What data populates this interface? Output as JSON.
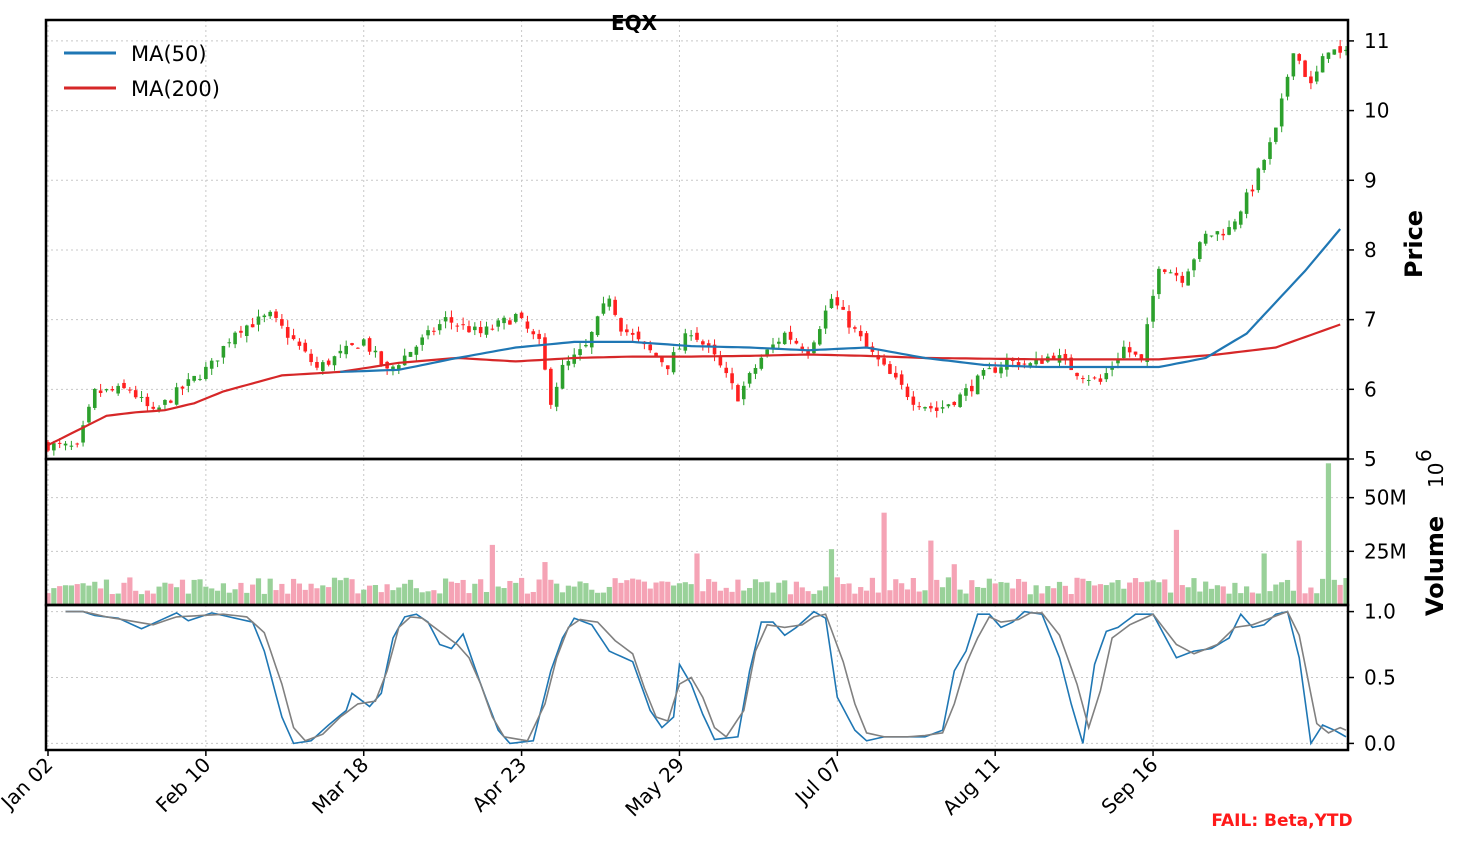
{
  "chart_data": [
    {
      "type": "candlestick",
      "title": "EQX",
      "ylabel": "Price",
      "ylim": [
        5,
        11.3
      ],
      "yticks": [
        "5",
        "6",
        "7",
        "8",
        "9",
        "10",
        "11"
      ],
      "x_tick_labels": [
        "Jan 02",
        "Feb 10",
        "Mar 18",
        "Apr 23",
        "May 29",
        "Jul 07",
        "Aug 11",
        "Sep 16"
      ],
      "legend": {
        "placement": "top-left",
        "entries": [
          {
            "label": "MA(50)",
            "color": "#1f77b4"
          },
          {
            "label": "MA(200)",
            "color": "#d62728"
          }
        ]
      },
      "up_color": "#2ca02c",
      "down_color": "#ff2020",
      "close_keypoints": [
        [
          0,
          5.2
        ],
        [
          5,
          5.15
        ],
        [
          8,
          5.95
        ],
        [
          14,
          6.0
        ],
        [
          18,
          5.65
        ],
        [
          22,
          5.95
        ],
        [
          28,
          6.35
        ],
        [
          32,
          6.85
        ],
        [
          38,
          7.05
        ],
        [
          42,
          6.7
        ],
        [
          46,
          6.3
        ],
        [
          54,
          6.7
        ],
        [
          58,
          6.25
        ],
        [
          62,
          6.55
        ],
        [
          68,
          7.0
        ],
        [
          74,
          6.8
        ],
        [
          80,
          7.05
        ],
        [
          84,
          6.65
        ],
        [
          86,
          5.85
        ],
        [
          88,
          6.3
        ],
        [
          92,
          6.6
        ],
        [
          96,
          7.35
        ],
        [
          98,
          6.9
        ],
        [
          102,
          6.6
        ],
        [
          106,
          6.35
        ],
        [
          110,
          6.85
        ],
        [
          114,
          6.45
        ],
        [
          118,
          5.9
        ],
        [
          122,
          6.45
        ],
        [
          126,
          6.8
        ],
        [
          130,
          6.55
        ],
        [
          134,
          7.3
        ],
        [
          137,
          6.95
        ],
        [
          140,
          6.6
        ],
        [
          144,
          6.2
        ],
        [
          148,
          5.85
        ],
        [
          152,
          5.7
        ],
        [
          156,
          5.9
        ],
        [
          160,
          6.2
        ],
        [
          164,
          6.4
        ],
        [
          168,
          6.35
        ],
        [
          172,
          6.5
        ],
        [
          176,
          6.25
        ],
        [
          180,
          6.1
        ],
        [
          184,
          6.6
        ],
        [
          187,
          6.4
        ],
        [
          190,
          7.8
        ],
        [
          194,
          7.6
        ],
        [
          198,
          8.2
        ],
        [
          202,
          8.3
        ],
        [
          206,
          8.9
        ],
        [
          210,
          9.7
        ],
        [
          213,
          10.9
        ],
        [
          216,
          10.35
        ],
        [
          219,
          10.9
        ],
        [
          221,
          10.8
        ]
      ],
      "ma50_keypoints": [
        [
          50,
          6.25
        ],
        [
          60,
          6.28
        ],
        [
          70,
          6.45
        ],
        [
          80,
          6.6
        ],
        [
          90,
          6.68
        ],
        [
          100,
          6.68
        ],
        [
          110,
          6.62
        ],
        [
          120,
          6.6
        ],
        [
          130,
          6.56
        ],
        [
          140,
          6.6
        ],
        [
          150,
          6.45
        ],
        [
          160,
          6.35
        ],
        [
          170,
          6.32
        ],
        [
          180,
          6.32
        ],
        [
          190,
          6.32
        ],
        [
          198,
          6.45
        ],
        [
          205,
          6.8
        ],
        [
          210,
          7.25
        ],
        [
          215,
          7.7
        ],
        [
          221,
          8.3
        ]
      ],
      "ma200_keypoints": [
        [
          0,
          5.2
        ],
        [
          6,
          5.45
        ],
        [
          10,
          5.62
        ],
        [
          15,
          5.67
        ],
        [
          20,
          5.7
        ],
        [
          25,
          5.8
        ],
        [
          30,
          5.97
        ],
        [
          40,
          6.2
        ],
        [
          50,
          6.25
        ],
        [
          60,
          6.38
        ],
        [
          70,
          6.45
        ],
        [
          80,
          6.4
        ],
        [
          90,
          6.45
        ],
        [
          100,
          6.47
        ],
        [
          110,
          6.47
        ],
        [
          120,
          6.48
        ],
        [
          130,
          6.5
        ],
        [
          140,
          6.48
        ],
        [
          150,
          6.45
        ],
        [
          160,
          6.44
        ],
        [
          170,
          6.43
        ],
        [
          180,
          6.43
        ],
        [
          190,
          6.43
        ],
        [
          200,
          6.5
        ],
        [
          210,
          6.6
        ],
        [
          221,
          6.93
        ]
      ]
    },
    {
      "type": "bar",
      "ylabel": "Volume",
      "scale_label": "10^6",
      "ylim": [
        0,
        68
      ],
      "yticks": [
        "25M",
        "50M"
      ],
      "up_color": "#99d199",
      "down_color": "#f5a3b5",
      "note": "",
      "volume_spikes": [
        [
          76,
          28
        ],
        [
          85,
          20
        ],
        [
          111,
          24
        ],
        [
          134,
          26
        ],
        [
          143,
          43
        ],
        [
          145,
          12
        ],
        [
          151,
          30
        ],
        [
          155,
          19
        ],
        [
          193,
          35
        ],
        [
          208,
          24
        ],
        [
          214,
          30
        ],
        [
          219,
          66
        ]
      ]
    },
    {
      "type": "line",
      "ylim": [
        -0.05,
        1.05
      ],
      "yticks": [
        "0.0",
        "0.5",
        "1.0"
      ],
      "series": [
        {
          "color": "#1f77b4",
          "keypoints": [
            [
              3,
              1.0
            ],
            [
              6,
              1.0
            ],
            [
              8,
              0.97
            ],
            [
              12,
              0.95
            ],
            [
              16,
              0.87
            ],
            [
              20,
              0.95
            ],
            [
              22,
              0.99
            ],
            [
              24,
              0.93
            ],
            [
              28,
              0.99
            ],
            [
              32,
              0.95
            ],
            [
              35,
              0.92
            ],
            [
              37,
              0.7
            ],
            [
              40,
              0.2
            ],
            [
              42,
              0.0
            ],
            [
              45,
              0.02
            ],
            [
              48,
              0.14
            ],
            [
              51,
              0.25
            ],
            [
              52,
              0.38
            ],
            [
              55,
              0.28
            ],
            [
              57,
              0.38
            ],
            [
              59,
              0.8
            ],
            [
              61,
              0.96
            ],
            [
              63,
              0.98
            ],
            [
              65,
              0.92
            ],
            [
              67,
              0.75
            ],
            [
              69,
              0.72
            ],
            [
              71,
              0.83
            ],
            [
              74,
              0.45
            ],
            [
              77,
              0.1
            ],
            [
              79,
              0.0
            ],
            [
              83,
              0.02
            ],
            [
              86,
              0.55
            ],
            [
              88,
              0.8
            ],
            [
              90,
              0.95
            ],
            [
              93,
              0.9
            ],
            [
              96,
              0.7
            ],
            [
              100,
              0.62
            ],
            [
              103,
              0.25
            ],
            [
              105,
              0.12
            ],
            [
              107,
              0.2
            ],
            [
              108,
              0.6
            ],
            [
              110,
              0.45
            ],
            [
              112,
              0.22
            ],
            [
              114,
              0.03
            ],
            [
              118,
              0.05
            ],
            [
              120,
              0.55
            ],
            [
              122,
              0.92
            ],
            [
              124,
              0.92
            ],
            [
              126,
              0.82
            ],
            [
              128,
              0.88
            ],
            [
              131,
              1.0
            ],
            [
              133,
              0.95
            ],
            [
              135,
              0.35
            ],
            [
              138,
              0.1
            ],
            [
              140,
              0.02
            ],
            [
              143,
              0.05
            ],
            [
              147,
              0.05
            ],
            [
              150,
              0.05
            ],
            [
              153,
              0.1
            ],
            [
              155,
              0.55
            ],
            [
              157,
              0.7
            ],
            [
              159,
              0.98
            ],
            [
              161,
              0.98
            ],
            [
              163,
              0.88
            ],
            [
              165,
              0.92
            ],
            [
              167,
              1.0
            ],
            [
              170,
              0.98
            ],
            [
              173,
              0.65
            ],
            [
              175,
              0.3
            ],
            [
              177,
              0.0
            ],
            [
              179,
              0.6
            ],
            [
              181,
              0.85
            ],
            [
              183,
              0.88
            ],
            [
              186,
              0.98
            ],
            [
              189,
              0.98
            ],
            [
              193,
              0.65
            ],
            [
              196,
              0.7
            ],
            [
              199,
              0.72
            ],
            [
              202,
              0.8
            ],
            [
              204,
              0.98
            ],
            [
              206,
              0.88
            ],
            [
              208,
              0.9
            ],
            [
              210,
              0.98
            ],
            [
              212,
              1.0
            ],
            [
              214,
              0.65
            ],
            [
              216,
              0.0
            ],
            [
              218,
              0.14
            ],
            [
              220,
              0.1
            ],
            [
              222,
              0.05
            ]
          ]
        },
        {
          "color": "#808080",
          "keypoints": [
            [
              3,
              1.0
            ],
            [
              6,
              1.0
            ],
            [
              10,
              0.96
            ],
            [
              14,
              0.93
            ],
            [
              18,
              0.9
            ],
            [
              22,
              0.96
            ],
            [
              26,
              0.97
            ],
            [
              30,
              0.98
            ],
            [
              34,
              0.96
            ],
            [
              37,
              0.84
            ],
            [
              40,
              0.45
            ],
            [
              42,
              0.12
            ],
            [
              44,
              0.02
            ],
            [
              47,
              0.07
            ],
            [
              50,
              0.2
            ],
            [
              53,
              0.3
            ],
            [
              56,
              0.32
            ],
            [
              58,
              0.55
            ],
            [
              60,
              0.88
            ],
            [
              62,
              0.96
            ],
            [
              64,
              0.95
            ],
            [
              67,
              0.85
            ],
            [
              70,
              0.75
            ],
            [
              72,
              0.65
            ],
            [
              74,
              0.45
            ],
            [
              76,
              0.2
            ],
            [
              78,
              0.05
            ],
            [
              82,
              0.02
            ],
            [
              85,
              0.3
            ],
            [
              87,
              0.65
            ],
            [
              89,
              0.88
            ],
            [
              91,
              0.94
            ],
            [
              94,
              0.92
            ],
            [
              97,
              0.78
            ],
            [
              100,
              0.68
            ],
            [
              102,
              0.42
            ],
            [
              104,
              0.2
            ],
            [
              106,
              0.17
            ],
            [
              108,
              0.45
            ],
            [
              110,
              0.5
            ],
            [
              112,
              0.35
            ],
            [
              114,
              0.12
            ],
            [
              116,
              0.05
            ],
            [
              119,
              0.25
            ],
            [
              121,
              0.7
            ],
            [
              123,
              0.9
            ],
            [
              126,
              0.88
            ],
            [
              129,
              0.9
            ],
            [
              131,
              0.96
            ],
            [
              133,
              0.98
            ],
            [
              136,
              0.62
            ],
            [
              138,
              0.3
            ],
            [
              140,
              0.08
            ],
            [
              143,
              0.05
            ],
            [
              147,
              0.05
            ],
            [
              150,
              0.06
            ],
            [
              153,
              0.08
            ],
            [
              155,
              0.3
            ],
            [
              157,
              0.6
            ],
            [
              159,
              0.8
            ],
            [
              161,
              0.96
            ],
            [
              163,
              0.92
            ],
            [
              166,
              0.94
            ],
            [
              168,
              0.99
            ],
            [
              170,
              0.99
            ],
            [
              173,
              0.82
            ],
            [
              176,
              0.45
            ],
            [
              178,
              0.12
            ],
            [
              180,
              0.4
            ],
            [
              182,
              0.8
            ],
            [
              185,
              0.9
            ],
            [
              189,
              0.98
            ],
            [
              193,
              0.75
            ],
            [
              196,
              0.68
            ],
            [
              200,
              0.75
            ],
            [
              203,
              0.88
            ],
            [
              206,
              0.9
            ],
            [
              209,
              0.95
            ],
            [
              212,
              1.0
            ],
            [
              214,
              0.82
            ],
            [
              217,
              0.15
            ],
            [
              219,
              0.08
            ],
            [
              221,
              0.12
            ],
            [
              222,
              0.1
            ]
          ]
        }
      ]
    }
  ],
  "status": {
    "fail_text": "FAIL: Beta,YTD"
  }
}
